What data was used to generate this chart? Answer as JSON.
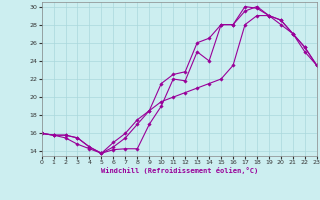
{
  "xlabel": "Windchill (Refroidissement éolien,°C)",
  "xlim": [
    0,
    23
  ],
  "ylim": [
    13.5,
    30.5
  ],
  "xticks": [
    0,
    1,
    2,
    3,
    4,
    5,
    6,
    7,
    8,
    9,
    10,
    11,
    12,
    13,
    14,
    15,
    16,
    17,
    18,
    19,
    20,
    21,
    22,
    23
  ],
  "yticks": [
    14,
    16,
    18,
    20,
    22,
    24,
    26,
    28,
    30
  ],
  "background_color": "#cceef0",
  "grid_color": "#aad8dc",
  "line_color": "#990099",
  "line1_x": [
    0,
    1,
    2,
    3,
    4,
    5,
    6,
    7,
    8,
    9,
    10,
    11,
    12,
    13,
    14,
    15,
    16,
    17,
    18,
    19,
    20,
    21,
    22,
    23
  ],
  "line1_y": [
    16,
    15.8,
    15.5,
    14.8,
    14.3,
    13.8,
    14.2,
    14.3,
    14.3,
    17.0,
    19.0,
    22.0,
    21.8,
    25.0,
    24.0,
    28.0,
    28.0,
    30.0,
    29.8,
    29.0,
    28.5,
    27.0,
    25.0,
    23.5
  ],
  "line2_x": [
    0,
    1,
    2,
    3,
    4,
    5,
    6,
    7,
    8,
    9,
    10,
    11,
    12,
    13,
    14,
    15,
    16,
    17,
    18,
    19,
    20,
    21,
    22,
    23
  ],
  "line2_y": [
    16,
    15.8,
    15.8,
    15.5,
    14.5,
    13.8,
    14.5,
    15.5,
    17.0,
    18.5,
    21.5,
    22.5,
    22.8,
    26.0,
    26.5,
    28.0,
    28.0,
    29.5,
    30.0,
    29.0,
    28.0,
    27.0,
    25.5,
    23.5
  ],
  "line3_x": [
    0,
    1,
    2,
    3,
    4,
    5,
    6,
    7,
    8,
    9,
    10,
    11,
    12,
    13,
    14,
    15,
    16,
    17,
    18,
    19,
    20,
    21,
    22,
    23
  ],
  "line3_y": [
    16,
    15.8,
    15.8,
    15.5,
    14.5,
    13.8,
    15.0,
    16.0,
    17.5,
    18.5,
    19.5,
    20.0,
    20.5,
    21.0,
    21.5,
    22.0,
    23.5,
    28.0,
    29.0,
    29.0,
    28.5,
    27.0,
    25.5,
    23.5
  ]
}
